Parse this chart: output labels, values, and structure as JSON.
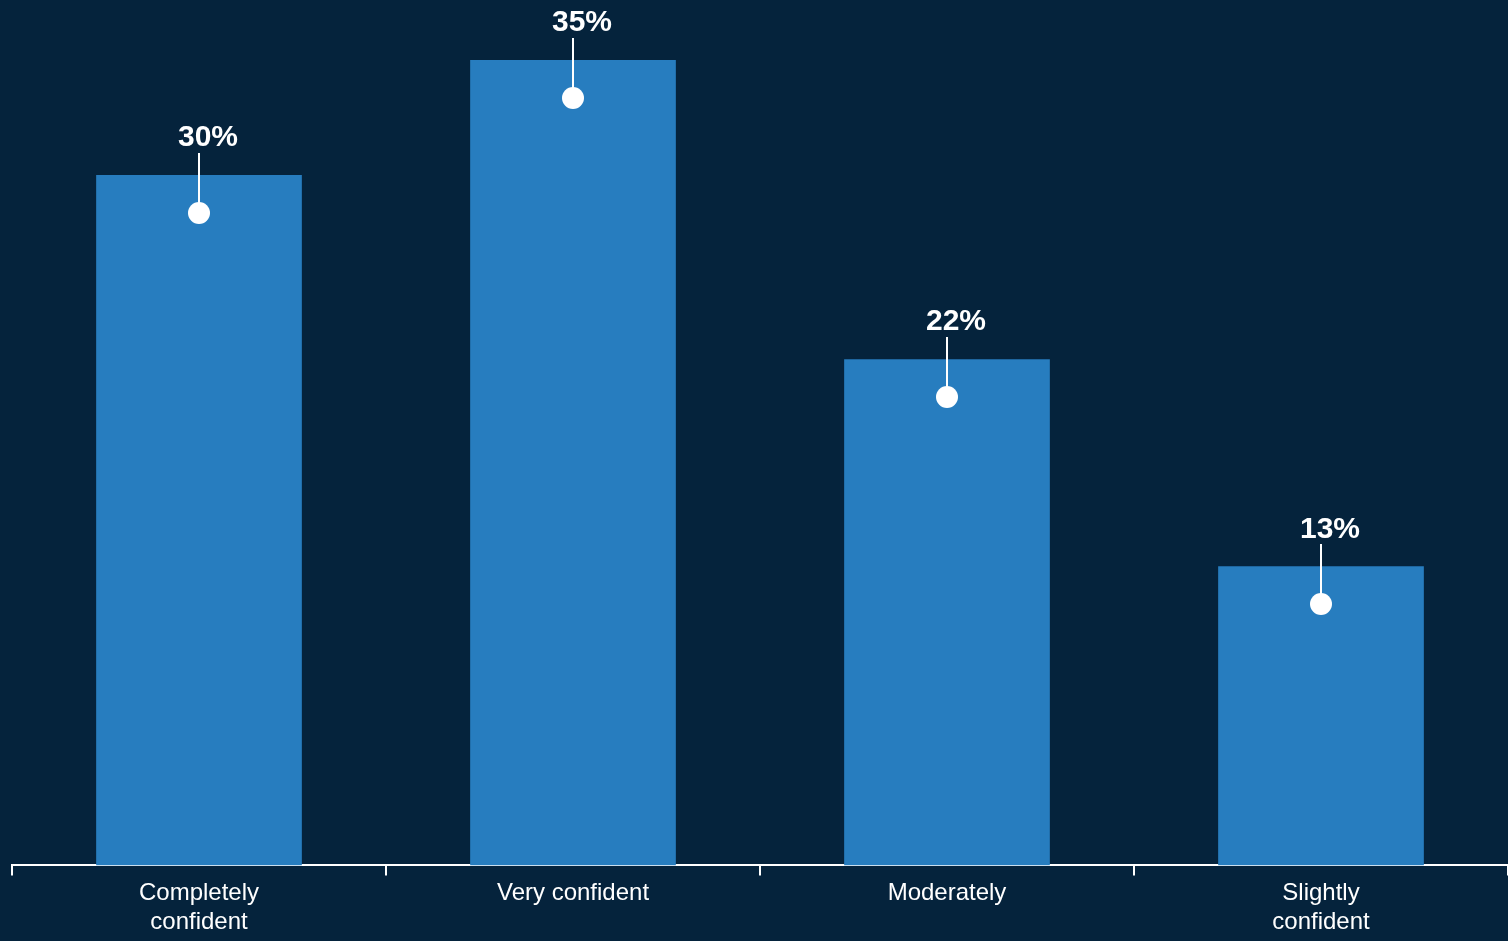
{
  "chart_data": {
    "type": "bar",
    "categories": [
      "Completely confident",
      "Very confident",
      "Moderately",
      "Slightly confident"
    ],
    "values": [
      30,
      35,
      22,
      13
    ],
    "value_labels": [
      "30%",
      "35%",
      "22%",
      "13%"
    ],
    "color": "#277dbf",
    "grid": false,
    "legend": false,
    "tick_labels": "x"
  }
}
